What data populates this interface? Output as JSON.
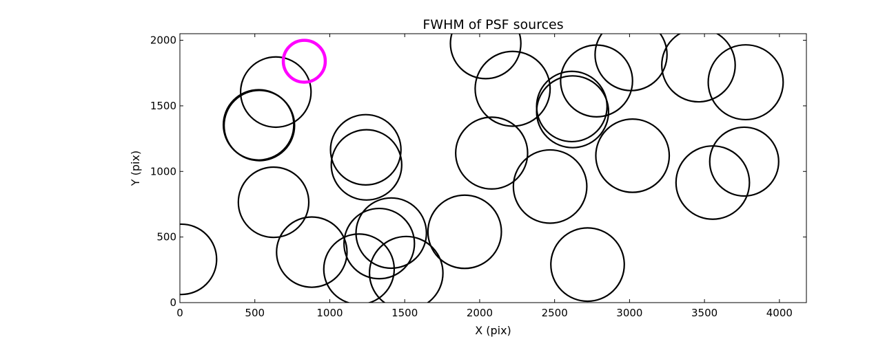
{
  "chart_data": {
    "type": "scatter",
    "title": "FWHM of PSF sources",
    "xlabel": "X (pix)",
    "ylabel": "Y (pix)",
    "xlim": [
      0,
      4180
    ],
    "ylim": [
      0,
      2050
    ],
    "xticks": [
      0,
      500,
      1000,
      1500,
      2000,
      2500,
      3000,
      3500,
      4000
    ],
    "yticks": [
      0,
      500,
      1000,
      1500,
      2000
    ],
    "grid": false,
    "colors": {
      "source": "#000000",
      "highlight": "#ff00ff"
    },
    "series": [
      {
        "marker": "circle",
        "points": [
          {
            "x": 10,
            "y": 330,
            "r": 235
          },
          {
            "x": 525,
            "y": 1355,
            "r": 235
          },
          {
            "x": 530,
            "y": 1350,
            "r": 235
          },
          {
            "x": 640,
            "y": 1605,
            "r": 235
          },
          {
            "x": 625,
            "y": 765,
            "r": 235
          },
          {
            "x": 880,
            "y": 385,
            "r": 235
          },
          {
            "x": 1240,
            "y": 1165,
            "r": 235
          },
          {
            "x": 1245,
            "y": 1050,
            "r": 235
          },
          {
            "x": 1195,
            "y": 255,
            "r": 235
          },
          {
            "x": 1330,
            "y": 450,
            "r": 235
          },
          {
            "x": 1410,
            "y": 530,
            "r": 235
          },
          {
            "x": 1510,
            "y": 225,
            "r": 245
          },
          {
            "x": 1900,
            "y": 540,
            "r": 245
          },
          {
            "x": 2040,
            "y": 1975,
            "r": 235
          },
          {
            "x": 2080,
            "y": 1140,
            "r": 240
          },
          {
            "x": 2220,
            "y": 1630,
            "r": 250
          },
          {
            "x": 2470,
            "y": 885,
            "r": 245
          },
          {
            "x": 2615,
            "y": 1495,
            "r": 235
          },
          {
            "x": 2620,
            "y": 1455,
            "r": 240
          },
          {
            "x": 2720,
            "y": 290,
            "r": 245
          },
          {
            "x": 2780,
            "y": 1690,
            "r": 240
          },
          {
            "x": 3010,
            "y": 1890,
            "r": 240
          },
          {
            "x": 3020,
            "y": 1120,
            "r": 245
          },
          {
            "x": 3460,
            "y": 1810,
            "r": 245
          },
          {
            "x": 3555,
            "y": 915,
            "r": 245
          },
          {
            "x": 3765,
            "y": 1075,
            "r": 230
          },
          {
            "x": 3775,
            "y": 1680,
            "r": 250
          }
        ]
      },
      {
        "marker": "circle",
        "highlight": true,
        "points": [
          {
            "x": 830,
            "y": 1840,
            "r": 140
          }
        ]
      }
    ]
  }
}
